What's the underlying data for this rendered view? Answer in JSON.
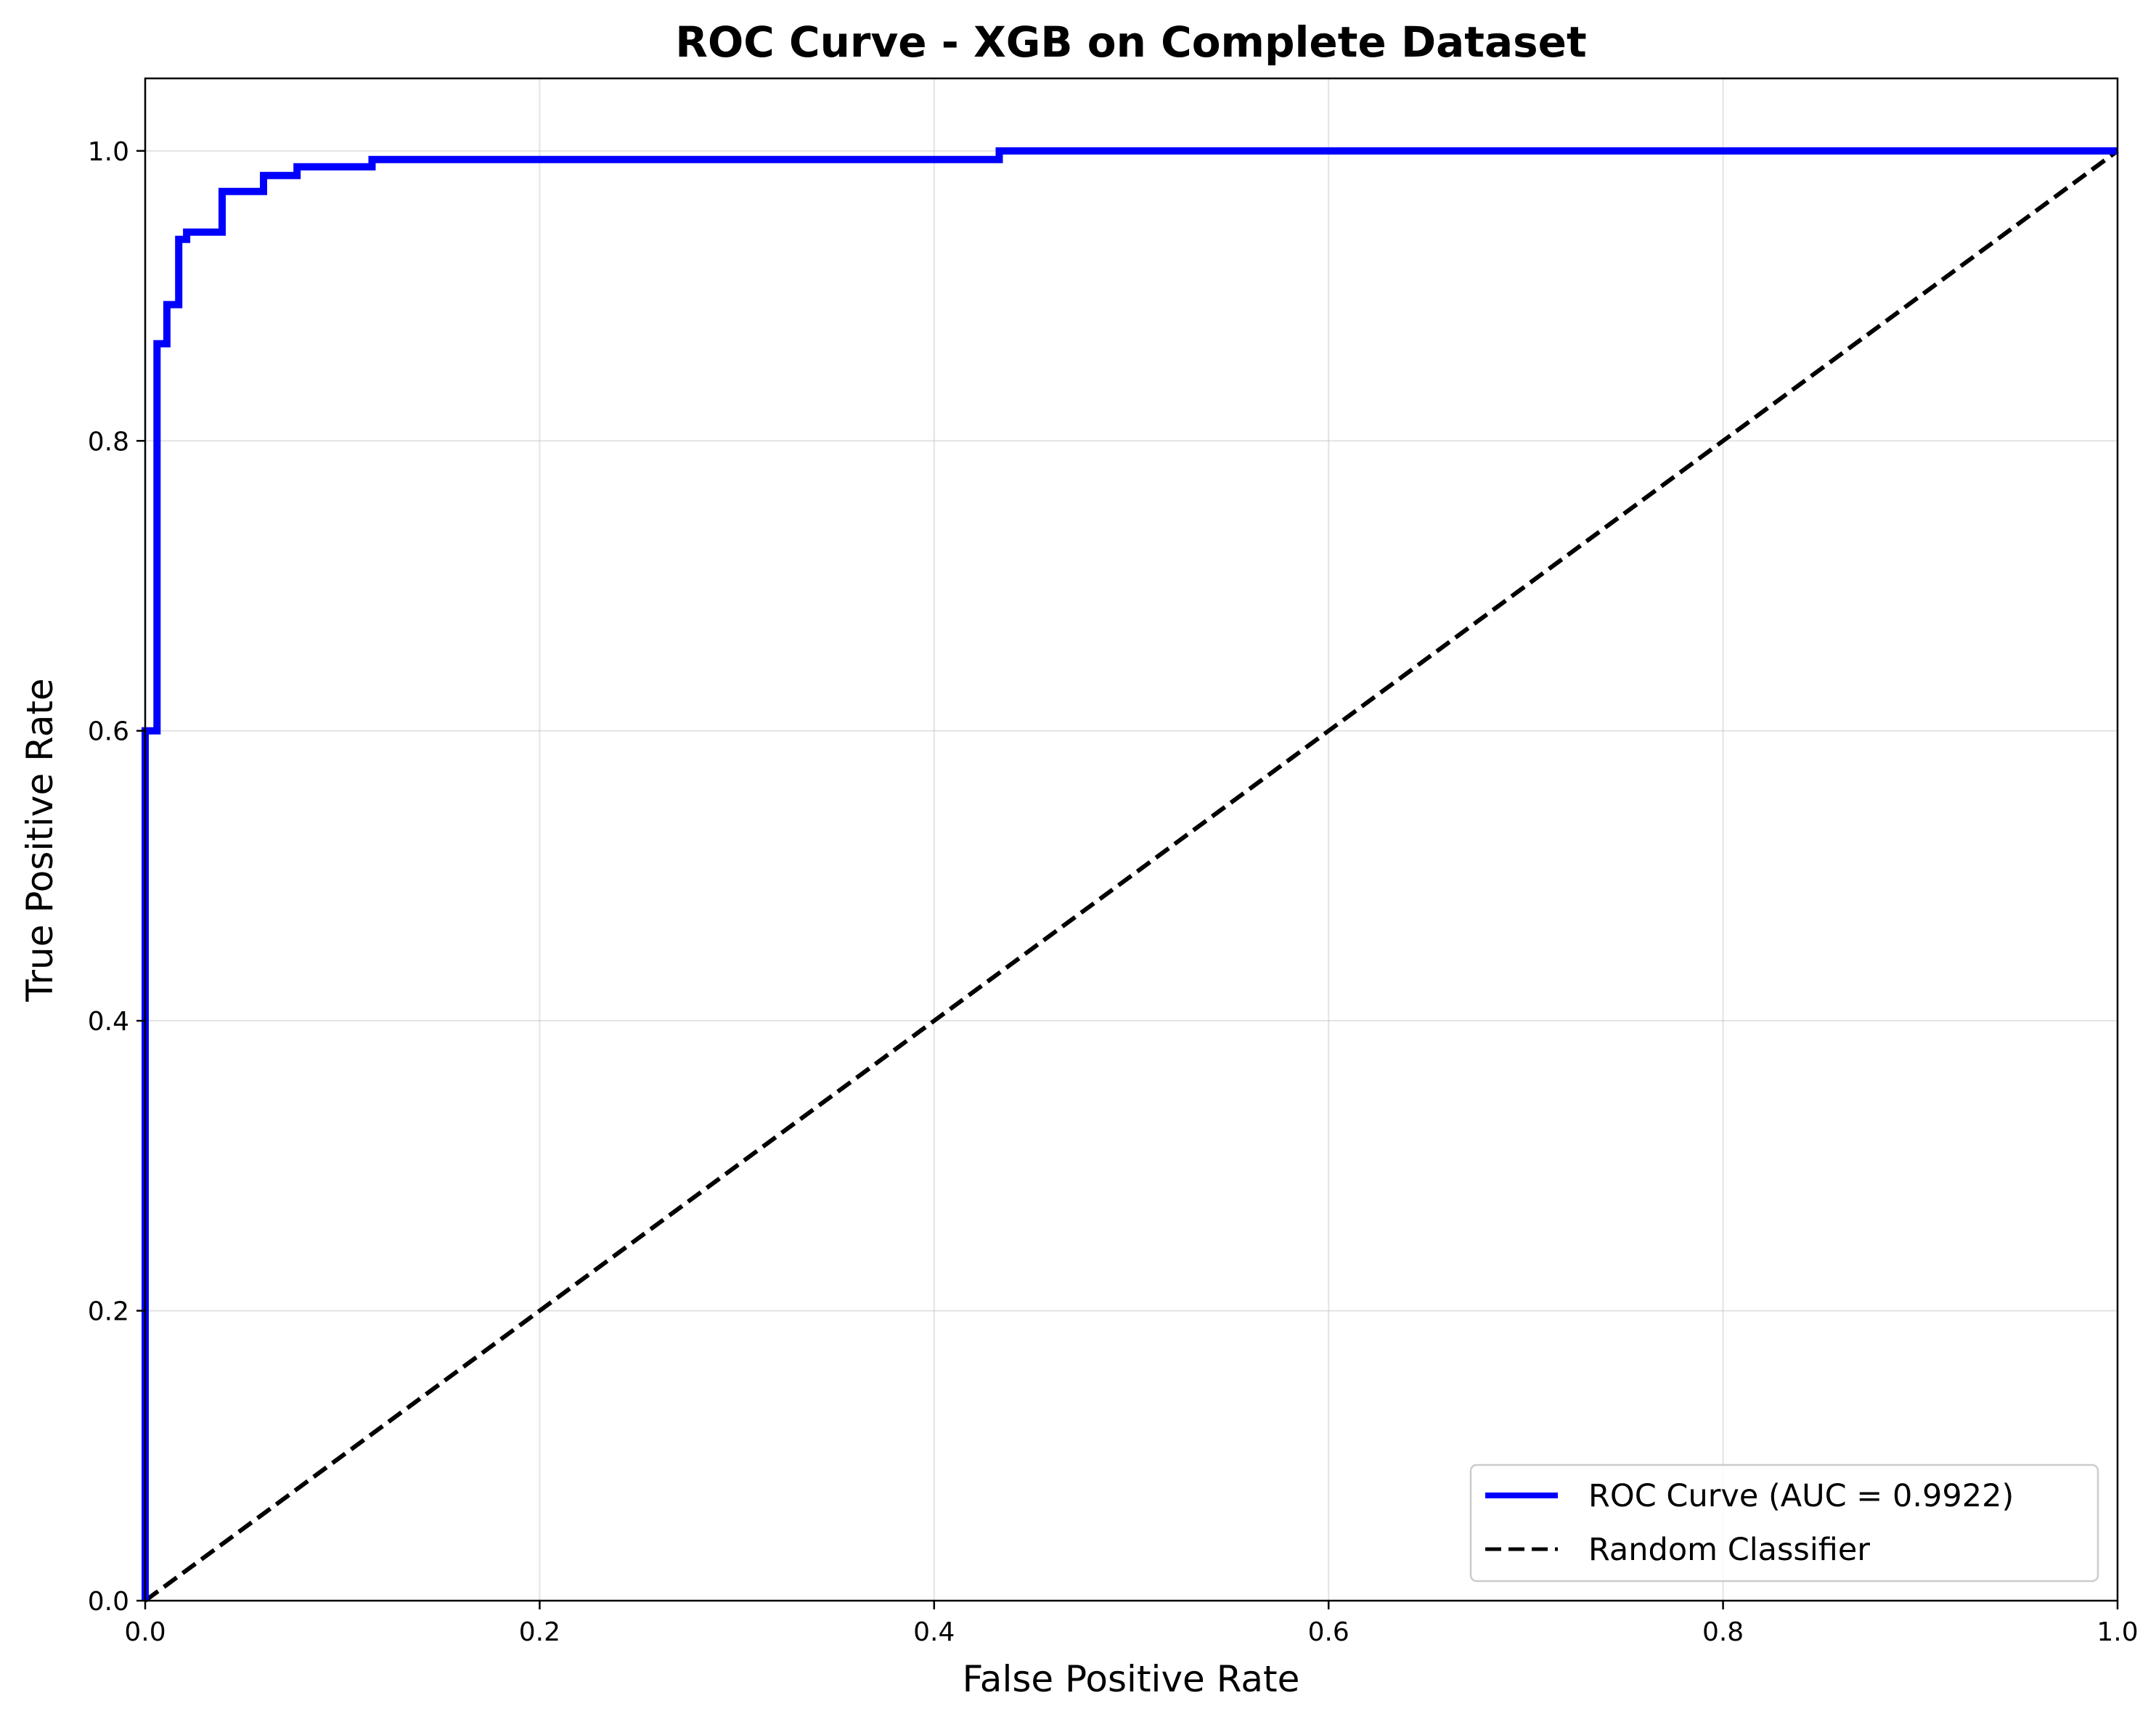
{
  "chart_data": {
    "type": "line",
    "title": "ROC Curve - XGB on Complete Dataset",
    "xlabel": "False Positive Rate",
    "ylabel": "True Positive Rate",
    "xlim": [
      0.0,
      1.0
    ],
    "ylim": [
      0.0,
      1.05
    ],
    "grid": true,
    "legend_position": "lower-right",
    "x_ticks": [
      "0.0",
      "0.2",
      "0.4",
      "0.6",
      "0.8",
      "1.0"
    ],
    "y_ticks": [
      "0.0",
      "0.2",
      "0.4",
      "0.6",
      "0.8",
      "1.0"
    ],
    "series": [
      {
        "name": "ROC Curve (AUC = 0.9922)",
        "color": "#0000ff",
        "line_style": "solid",
        "points": [
          [
            0.0,
            0.0
          ],
          [
            0.0,
            0.6
          ],
          [
            0.006,
            0.6
          ],
          [
            0.006,
            0.867
          ],
          [
            0.011,
            0.867
          ],
          [
            0.011,
            0.894
          ],
          [
            0.017,
            0.894
          ],
          [
            0.017,
            0.939
          ],
          [
            0.021,
            0.939
          ],
          [
            0.021,
            0.944
          ],
          [
            0.039,
            0.944
          ],
          [
            0.039,
            0.972
          ],
          [
            0.06,
            0.972
          ],
          [
            0.06,
            0.983
          ],
          [
            0.077,
            0.983
          ],
          [
            0.077,
            0.989
          ],
          [
            0.115,
            0.989
          ],
          [
            0.115,
            0.994
          ],
          [
            0.433,
            0.994
          ],
          [
            0.433,
            1.0
          ],
          [
            1.0,
            1.0
          ]
        ]
      },
      {
        "name": "Random Classifier",
        "color": "#000000",
        "line_style": "dashed",
        "points": [
          [
            0.0,
            0.0
          ],
          [
            1.0,
            1.0
          ]
        ]
      }
    ]
  }
}
